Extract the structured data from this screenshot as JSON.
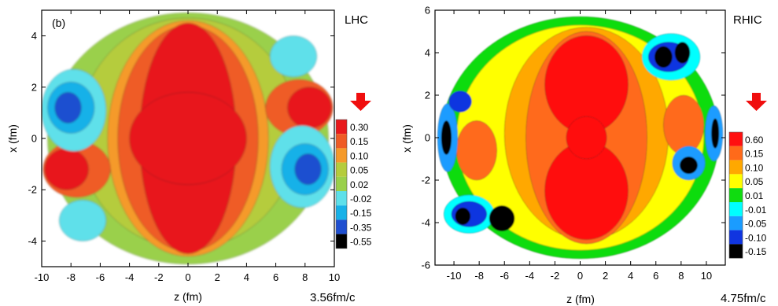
{
  "chart_data": [
    {
      "type": "heatmap",
      "panel_label": "(b)",
      "title": "LHC",
      "time_label": "3.56fm/c",
      "xlabel": "z (fm)",
      "ylabel": "x (fm)",
      "xlim": [
        -10,
        10
      ],
      "ylim": [
        -5,
        5
      ],
      "x_ticks": [
        -10,
        -8,
        -6,
        -4,
        -2,
        0,
        2,
        4,
        6,
        8,
        10
      ],
      "y_ticks": [
        -4,
        -2,
        0,
        2,
        4
      ],
      "grid": false,
      "legend_position": "right",
      "legend": {
        "levels": [
          "0.30",
          "0.15",
          "0.10",
          "0.05",
          "0.02",
          "-0.02",
          "-0.15",
          "-0.35",
          "-0.55"
        ],
        "colors": [
          "#e8191c",
          "#ef5b25",
          "#f59a2a",
          "#b5cc3c",
          "#9ad04b",
          "#5ee0ea",
          "#17b1e8",
          "#1f4fd0",
          "#000000"
        ]
      },
      "background_color": "#ffffff",
      "features": [
        {
          "shape": "ellipse",
          "cx": 0,
          "cy": 0,
          "rx": 9.6,
          "ry": 4.9,
          "value": "0.02"
        },
        {
          "shape": "ellipse",
          "cx": 0,
          "cy": 0.2,
          "rx": 7.5,
          "ry": 4.5,
          "value": "0.05"
        },
        {
          "shape": "ellipse",
          "cx": 0,
          "cy": 0,
          "rx": 5.5,
          "ry": 4.6,
          "value": "0.10"
        },
        {
          "shape": "ellipse",
          "cx": 0,
          "cy": 0,
          "rx": 4.8,
          "ry": 4.4,
          "value": "0.15"
        },
        {
          "shape": "ellipse",
          "cx": -7.6,
          "cy": -1.2,
          "rx": 2.3,
          "ry": 1.1,
          "value": "0.15"
        },
        {
          "shape": "ellipse",
          "cx": 7.6,
          "cy": 1.2,
          "rx": 2.3,
          "ry": 1.1,
          "value": "0.15"
        },
        {
          "shape": "ellipse",
          "cx": 0,
          "cy": 0,
          "rx": 3.3,
          "ry": 4.5,
          "value": "0.30"
        },
        {
          "shape": "ellipse",
          "cx": 0,
          "cy": 0,
          "rx": 4.0,
          "ry": 1.8,
          "value": "0.30"
        },
        {
          "shape": "ellipse",
          "cx": -8.3,
          "cy": -1.2,
          "rx": 1.5,
          "ry": 0.8,
          "value": "0.30"
        },
        {
          "shape": "ellipse",
          "cx": 8.3,
          "cy": 1.2,
          "rx": 1.5,
          "ry": 0.8,
          "value": "0.30"
        },
        {
          "shape": "ellipse",
          "cx": -7.8,
          "cy": 1.1,
          "rx": 2.2,
          "ry": 1.6,
          "value": "-0.02"
        },
        {
          "shape": "ellipse",
          "cx": -8.0,
          "cy": 1.2,
          "rx": 1.6,
          "ry": 1.0,
          "value": "-0.15"
        },
        {
          "shape": "ellipse",
          "cx": -8.2,
          "cy": 1.2,
          "rx": 0.9,
          "ry": 0.6,
          "value": "-0.35"
        },
        {
          "shape": "ellipse",
          "cx": 7.8,
          "cy": -1.1,
          "rx": 2.2,
          "ry": 1.6,
          "value": "-0.02"
        },
        {
          "shape": "ellipse",
          "cx": 8.0,
          "cy": -1.2,
          "rx": 1.6,
          "ry": 1.0,
          "value": "-0.15"
        },
        {
          "shape": "ellipse",
          "cx": 8.2,
          "cy": -1.2,
          "rx": 0.9,
          "ry": 0.6,
          "value": "-0.35"
        },
        {
          "shape": "ellipse",
          "cx": -7.2,
          "cy": -3.2,
          "rx": 1.6,
          "ry": 0.8,
          "value": "-0.02"
        },
        {
          "shape": "ellipse",
          "cx": 7.2,
          "cy": 3.2,
          "rx": 1.6,
          "ry": 0.8,
          "value": "-0.02"
        }
      ]
    },
    {
      "type": "heatmap",
      "title": "RHIC",
      "time_label": "4.75fm/c",
      "xlabel": "z (fm)",
      "ylabel": "x (fm)",
      "xlim": [
        -11.5,
        11.5
      ],
      "ylim": [
        -6,
        6
      ],
      "x_ticks": [
        -10,
        -8,
        -6,
        -4,
        -2,
        0,
        2,
        4,
        6,
        8,
        10
      ],
      "y_ticks": [
        -6,
        -4,
        -2,
        0,
        2,
        4,
        6
      ],
      "grid": false,
      "legend_position": "right",
      "legend": {
        "levels": [
          "0.60",
          "0.15",
          "0.10",
          "0.05",
          "0.01",
          "-0.01",
          "-0.05",
          "-0.10",
          "-0.15"
        ],
        "colors": [
          "#ff1010",
          "#ff6a1a",
          "#ffa800",
          "#ffff00",
          "#10dc10",
          "#00ffff",
          "#1a9cff",
          "#1035e0",
          "#000000"
        ]
      },
      "background_color": "#ffffff",
      "features": [
        {
          "shape": "ellipse",
          "cx": 0,
          "cy": 0,
          "rx": 11.0,
          "ry": 5.7,
          "value": "0.01"
        },
        {
          "shape": "ellipse",
          "cx": 0,
          "cy": 0,
          "rx": 9.8,
          "ry": 5.3,
          "value": "0.05"
        },
        {
          "shape": "ellipse",
          "cx": 0.5,
          "cy": 0.2,
          "rx": 6.5,
          "ry": 5.0,
          "value": "0.10"
        },
        {
          "shape": "ellipse",
          "cx": 0.5,
          "cy": 0,
          "rx": 4.8,
          "ry": 5.0,
          "value": "0.15"
        },
        {
          "shape": "ellipse",
          "cx": 0.5,
          "cy": 2.5,
          "rx": 3.3,
          "ry": 2.3,
          "value": "0.60"
        },
        {
          "shape": "ellipse",
          "cx": 0.5,
          "cy": -2.5,
          "rx": 3.3,
          "ry": 2.3,
          "value": "0.60"
        },
        {
          "shape": "ellipse",
          "cx": 0.5,
          "cy": 0,
          "rx": 1.6,
          "ry": 1.0,
          "value": "0.60"
        },
        {
          "shape": "ellipse",
          "cx": -8.2,
          "cy": -0.6,
          "rx": 1.6,
          "ry": 1.4,
          "value": "0.15"
        },
        {
          "shape": "ellipse",
          "cx": 8.2,
          "cy": 0.6,
          "rx": 1.6,
          "ry": 1.4,
          "value": "0.15"
        },
        {
          "shape": "ellipse",
          "cx": -8.8,
          "cy": -3.6,
          "rx": 2.0,
          "ry": 0.9,
          "value": "-0.01"
        },
        {
          "shape": "ellipse",
          "cx": -8.8,
          "cy": -3.6,
          "rx": 1.4,
          "ry": 0.6,
          "value": "-0.10"
        },
        {
          "shape": "ellipse",
          "cx": -9.3,
          "cy": -3.7,
          "rx": 0.6,
          "ry": 0.4,
          "value": "-0.15"
        },
        {
          "shape": "ellipse",
          "cx": -6.2,
          "cy": -3.8,
          "rx": 1.0,
          "ry": 0.6,
          "value": "-0.15"
        },
        {
          "shape": "ellipse",
          "cx": -10.5,
          "cy": 0,
          "rx": 0.8,
          "ry": 1.6,
          "value": "-0.05"
        },
        {
          "shape": "ellipse",
          "cx": -10.6,
          "cy": 0,
          "rx": 0.4,
          "ry": 0.8,
          "value": "-0.15"
        },
        {
          "shape": "ellipse",
          "cx": -9.5,
          "cy": 1.7,
          "rx": 0.9,
          "ry": 0.5,
          "value": "-0.10"
        },
        {
          "shape": "ellipse",
          "cx": 7.2,
          "cy": 3.8,
          "rx": 2.3,
          "ry": 1.1,
          "value": "-0.01"
        },
        {
          "shape": "ellipse",
          "cx": 7.0,
          "cy": 3.8,
          "rx": 1.6,
          "ry": 0.7,
          "value": "-0.10"
        },
        {
          "shape": "ellipse",
          "cx": 6.6,
          "cy": 3.8,
          "rx": 0.7,
          "ry": 0.5,
          "value": "-0.15"
        },
        {
          "shape": "ellipse",
          "cx": 8.1,
          "cy": 4.0,
          "rx": 0.6,
          "ry": 0.5,
          "value": "-0.15"
        },
        {
          "shape": "ellipse",
          "cx": 10.6,
          "cy": 0.2,
          "rx": 0.7,
          "ry": 1.3,
          "value": "-0.05"
        },
        {
          "shape": "ellipse",
          "cx": 10.7,
          "cy": 0.2,
          "rx": 0.3,
          "ry": 0.7,
          "value": "-0.15"
        },
        {
          "shape": "ellipse",
          "cx": 8.6,
          "cy": -1.2,
          "rx": 1.3,
          "ry": 0.8,
          "value": "-0.05"
        },
        {
          "shape": "ellipse",
          "cx": 8.6,
          "cy": -1.3,
          "rx": 0.7,
          "ry": 0.4,
          "value": "-0.15"
        }
      ]
    }
  ]
}
